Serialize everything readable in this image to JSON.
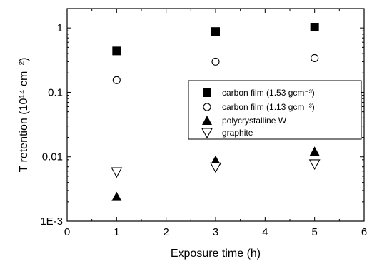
{
  "chart_data": {
    "type": "scatter",
    "title": "",
    "xlabel": "Exposure time (h)",
    "ylabel": "T retention (10¹⁴ cm⁻²)",
    "xlim": [
      0,
      6
    ],
    "ylim": [
      0.001,
      2
    ],
    "yscale": "log",
    "x_ticks": [
      0,
      1,
      2,
      3,
      4,
      5,
      6
    ],
    "y_ticks": [
      {
        "value": 0.001,
        "label": "1E-3"
      },
      {
        "value": 0.01,
        "label": "0.01"
      },
      {
        "value": 0.1,
        "label": "0.1"
      },
      {
        "value": 1,
        "label": "1"
      }
    ],
    "grid": false,
    "legend": {
      "position": "right",
      "box": true
    },
    "series": [
      {
        "name": "carbon film (1.53 gcm⁻³)",
        "marker": "filled-square",
        "x": [
          1,
          3,
          5
        ],
        "y": [
          0.44,
          0.88,
          1.03
        ]
      },
      {
        "name": "carbon film (1.13 gcm⁻³)",
        "marker": "open-circle",
        "x": [
          1,
          3,
          5
        ],
        "y": [
          0.155,
          0.3,
          0.34
        ]
      },
      {
        "name": "polycrystalline W",
        "marker": "filled-triangle-up",
        "x": [
          1,
          3,
          5
        ],
        "y": [
          0.0024,
          0.0088,
          0.0121
        ]
      },
      {
        "name": "graphite",
        "marker": "open-triangle-down",
        "x": [
          1,
          3,
          5
        ],
        "y": [
          0.0058,
          0.0069,
          0.0077
        ]
      }
    ]
  }
}
